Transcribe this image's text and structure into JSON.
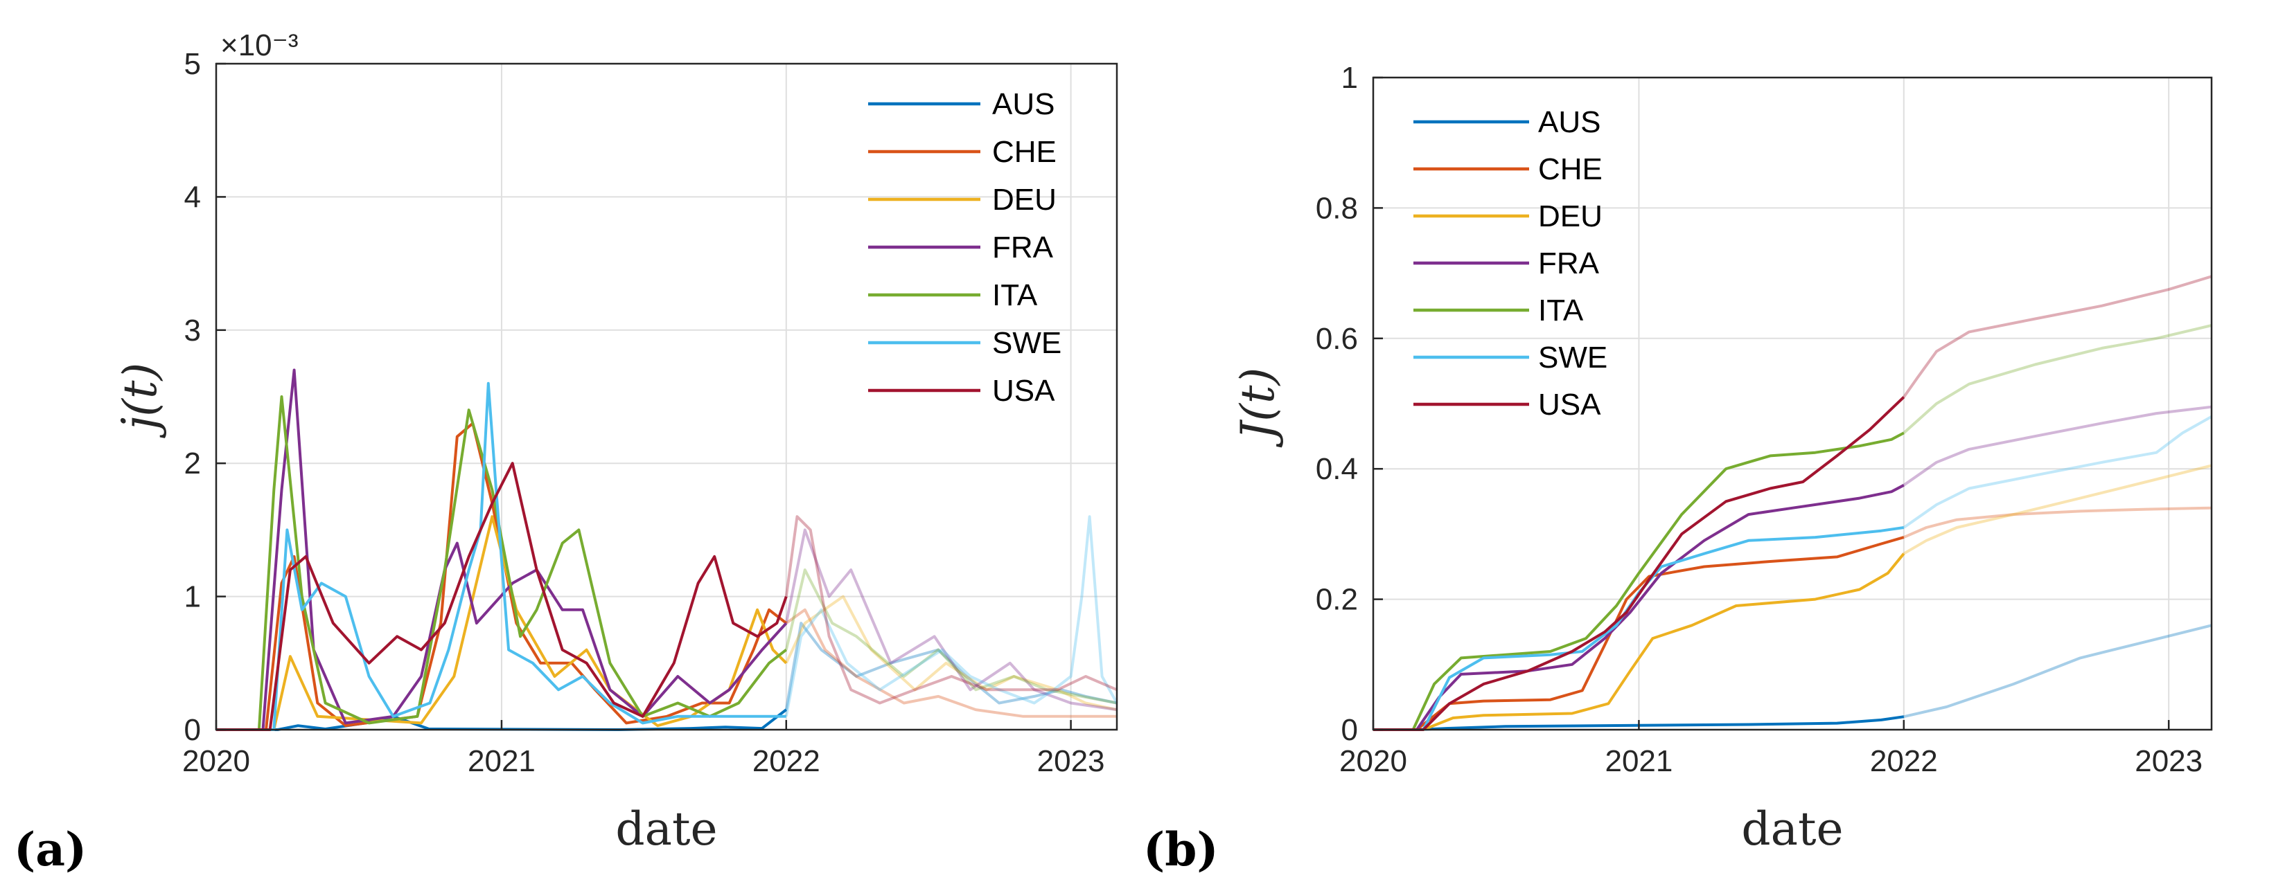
{
  "panel_labels": [
    "(a)",
    "(b)"
  ],
  "chart_data": [
    {
      "type": "line",
      "xlabel": "date",
      "ylabel": "j̇(t)",
      "x_ticks": [
        "2020",
        "2021",
        "2022",
        "2023"
      ],
      "y_ticks": [
        "0",
        "1",
        "2",
        "3",
        "4",
        "5"
      ],
      "y_multiplier": "×10⁻³",
      "xlim": [
        "2020-01-01",
        "2023-03-01"
      ],
      "ylim": [
        0,
        0.005
      ],
      "grid": true,
      "legend_position": "top-right",
      "faded_after": "2022-01-01",
      "series": [
        {
          "name": "AUS",
          "color": "#0072BD",
          "x": [
            "2020-01-01",
            "2020-03-20",
            "2020-04-15",
            "2020-05-20",
            "2020-07-10",
            "2020-08-15",
            "2020-09-30",
            "2021-06-01",
            "2021-09-01",
            "2021-10-15",
            "2021-12-01",
            "2022-01-01",
            "2022-01-20",
            "2022-02-15",
            "2022-04-01",
            "2022-05-15",
            "2022-07-15",
            "2022-08-20",
            "2022-10-01",
            "2022-11-15",
            "2022-12-20",
            "2023-01-20",
            "2023-03-01"
          ],
          "y": [
            0,
            0,
            3e-05,
            5e-06,
            5e-05,
            0.0001,
            5e-06,
            0,
            1e-05,
            2e-05,
            1e-05,
            0.00015,
            0.0008,
            0.0006,
            0.0004,
            0.0005,
            0.0006,
            0.0004,
            0.0002,
            0.00025,
            0.0003,
            0.00025,
            0.0002
          ]
        },
        {
          "name": "CHE",
          "color": "#D95319",
          "x": [
            "2020-01-01",
            "2020-03-05",
            "2020-03-25",
            "2020-04-10",
            "2020-05-10",
            "2020-06-15",
            "2020-09-15",
            "2020-10-15",
            "2020-11-05",
            "2020-11-25",
            "2020-12-20",
            "2021-01-20",
            "2021-02-20",
            "2021-04-01",
            "2021-05-01",
            "2021-06-10",
            "2021-08-01",
            "2021-09-15",
            "2021-10-20",
            "2021-11-20",
            "2021-12-10",
            "2022-01-01",
            "2022-01-25",
            "2022-02-20",
            "2022-04-01",
            "2022-06-01",
            "2022-07-15",
            "2022-09-01",
            "2022-11-01",
            "2023-01-01",
            "2023-03-01"
          ],
          "y": [
            0,
            0,
            0.0011,
            0.0013,
            0.0002,
            3e-05,
            0.0001,
            0.0008,
            0.0022,
            0.0023,
            0.0017,
            0.0008,
            0.0005,
            0.0005,
            0.0003,
            5e-05,
            0.0001,
            0.0002,
            0.0002,
            0.0006,
            0.0009,
            0.0008,
            0.0009,
            0.0006,
            0.0004,
            0.0002,
            0.00025,
            0.00015,
            0.0001,
            0.0001,
            0.0001
          ]
        },
        {
          "name": "DEU",
          "color": "#EDB120",
          "x": [
            "2020-01-01",
            "2020-03-15",
            "2020-04-05",
            "2020-05-10",
            "2020-09-20",
            "2020-11-01",
            "2020-12-20",
            "2021-01-20",
            "2021-03-10",
            "2021-04-20",
            "2021-05-20",
            "2021-07-20",
            "2021-09-01",
            "2021-10-20",
            "2021-11-25",
            "2021-12-15",
            "2022-01-01",
            "2022-01-25",
            "2022-03-15",
            "2022-04-20",
            "2022-06-15",
            "2022-07-25",
            "2022-09-15",
            "2022-10-20",
            "2022-12-15",
            "2023-01-20",
            "2023-03-01"
          ],
          "y": [
            0,
            0,
            0.00055,
            0.0001,
            5e-05,
            0.0004,
            0.0016,
            0.0009,
            0.0004,
            0.0006,
            0.0003,
            3e-05,
            0.0001,
            0.0003,
            0.0009,
            0.0006,
            0.0005,
            0.0008,
            0.001,
            0.0006,
            0.0003,
            0.0005,
            0.0003,
            0.0004,
            0.0003,
            0.0002,
            0.00015
          ]
        },
        {
          "name": "FRA",
          "color": "#7E2F8E",
          "x": [
            "2020-01-01",
            "2020-03-01",
            "2020-03-25",
            "2020-04-10",
            "2020-05-05",
            "2020-06-15",
            "2020-08-15",
            "2020-09-20",
            "2020-10-20",
            "2020-11-05",
            "2020-11-30",
            "2021-01-15",
            "2021-02-15",
            "2021-03-20",
            "2021-04-15",
            "2021-05-20",
            "2021-07-01",
            "2021-08-15",
            "2021-09-25",
            "2021-10-20",
            "2021-12-01",
            "2022-01-01",
            "2022-01-25",
            "2022-02-25",
            "2022-03-25",
            "2022-05-15",
            "2022-07-10",
            "2022-08-25",
            "2022-10-15",
            "2022-11-15",
            "2023-01-01",
            "2023-03-01"
          ],
          "y": [
            0,
            0,
            0.0018,
            0.0027,
            0.0006,
            5e-05,
            0.0001,
            0.0004,
            0.0012,
            0.0014,
            0.0008,
            0.0011,
            0.0012,
            0.0009,
            0.0009,
            0.0003,
            0.0001,
            0.0004,
            0.0002,
            0.0003,
            0.0006,
            0.0008,
            0.0015,
            0.001,
            0.0012,
            0.0005,
            0.0007,
            0.0003,
            0.0005,
            0.0003,
            0.0002,
            0.00015
          ]
        },
        {
          "name": "ITA",
          "color": "#77AC30",
          "x": [
            "2020-01-01",
            "2020-02-25",
            "2020-03-15",
            "2020-03-25",
            "2020-04-20",
            "2020-05-20",
            "2020-07-15",
            "2020-09-15",
            "2020-10-20",
            "2020-11-20",
            "2020-12-20",
            "2021-01-25",
            "2021-02-15",
            "2021-03-20",
            "2021-04-10",
            "2021-05-20",
            "2021-07-01",
            "2021-08-15",
            "2021-09-25",
            "2021-11-01",
            "2021-12-10",
            "2022-01-01",
            "2022-01-25",
            "2022-03-01",
            "2022-04-01",
            "2022-06-01",
            "2022-07-15",
            "2022-09-01",
            "2022-10-20",
            "2022-12-01",
            "2023-03-01"
          ],
          "y": [
            0,
            0,
            0.0018,
            0.0025,
            0.001,
            0.0002,
            5e-05,
            0.0001,
            0.0012,
            0.0024,
            0.0018,
            0.0007,
            0.0009,
            0.0014,
            0.0015,
            0.0005,
            0.0001,
            0.0002,
            0.0001,
            0.0002,
            0.0005,
            0.0006,
            0.0012,
            0.0008,
            0.0007,
            0.0004,
            0.0006,
            0.0003,
            0.0004,
            0.0003,
            0.0002
          ]
        },
        {
          "name": "SWE",
          "color": "#4DBEEE",
          "x": [
            "2020-01-01",
            "2020-03-15",
            "2020-04-01",
            "2020-04-20",
            "2020-05-15",
            "2020-06-15",
            "2020-07-15",
            "2020-08-15",
            "2020-10-01",
            "2020-10-25",
            "2020-11-20",
            "2020-12-05",
            "2020-12-15",
            "2020-12-25",
            "2021-01-10",
            "2021-02-10",
            "2021-03-15",
            "2021-04-15",
            "2021-05-20",
            "2021-07-01",
            "2021-08-15",
            "2021-10-01",
            "2021-11-15",
            "2021-12-20",
            "2022-01-01",
            "2022-01-20",
            "2022-02-15",
            "2022-03-20",
            "2022-05-01",
            "2022-07-20",
            "2022-08-25",
            "2022-10-01",
            "2022-11-15",
            "2022-12-10",
            "2023-01-01",
            "2023-01-15",
            "2023-01-25",
            "2023-02-10",
            "2023-03-01"
          ],
          "y": [
            0,
            0,
            0.0015,
            0.0009,
            0.0011,
            0.001,
            0.0004,
            0.0001,
            0.0002,
            0.0006,
            0.0012,
            0.0015,
            0.0026,
            0.0018,
            0.0006,
            0.0005,
            0.0003,
            0.0004,
            0.0002,
            5e-05,
            0.0001,
            0.0001,
            0.0001,
            0.0001,
            0.0001,
            0.0007,
            0.0009,
            0.0005,
            0.0003,
            0.0006,
            0.0004,
            0.0003,
            0.0002,
            0.0003,
            0.0004,
            0.001,
            0.0016,
            0.0004,
            0.0002
          ]
        },
        {
          "name": "USA",
          "color": "#A2142F",
          "x": [
            "2020-01-01",
            "2020-03-10",
            "2020-04-05",
            "2020-04-25",
            "2020-05-30",
            "2020-07-15",
            "2020-08-20",
            "2020-09-20",
            "2020-10-20",
            "2020-11-20",
            "2020-12-20",
            "2021-01-15",
            "2021-02-15",
            "2021-03-20",
            "2021-04-20",
            "2021-05-25",
            "2021-07-01",
            "2021-08-10",
            "2021-09-10",
            "2021-10-01",
            "2021-10-25",
            "2021-11-25",
            "2021-12-20",
            "2022-01-01",
            "2022-01-15",
            "2022-02-01",
            "2022-02-25",
            "2022-03-25",
            "2022-05-01",
            "2022-06-15",
            "2022-08-01",
            "2022-09-15",
            "2022-11-01",
            "2022-12-15",
            "2023-01-20",
            "2023-03-01"
          ],
          "y": [
            0,
            0,
            0.0012,
            0.0013,
            0.0008,
            0.0005,
            0.0007,
            0.0006,
            0.0008,
            0.0013,
            0.0017,
            0.002,
            0.0012,
            0.0006,
            0.0005,
            0.0002,
            0.0001,
            0.0005,
            0.0011,
            0.0013,
            0.0008,
            0.0007,
            0.0008,
            0.001,
            0.0016,
            0.0015,
            0.0007,
            0.0003,
            0.0002,
            0.0003,
            0.0004,
            0.0003,
            0.0003,
            0.0003,
            0.0004,
            0.0003
          ]
        }
      ]
    },
    {
      "type": "line",
      "xlabel": "date",
      "ylabel": "J(t)",
      "x_ticks": [
        "2020",
        "2021",
        "2022",
        "2023"
      ],
      "y_ticks": [
        "0",
        "0.2",
        "0.4",
        "0.6",
        "0.8",
        "1"
      ],
      "xlim": [
        "2020-01-01",
        "2023-03-01"
      ],
      "ylim": [
        0,
        1
      ],
      "grid": true,
      "legend_position": "top-left",
      "faded_after": "2022-01-01",
      "series": [
        {
          "name": "AUS",
          "color": "#0072BD",
          "x": [
            "2020-01-01",
            "2020-03-01",
            "2020-04-10",
            "2020-07-01",
            "2021-06-01",
            "2021-10-01",
            "2021-12-01",
            "2022-01-01",
            "2022-03-01",
            "2022-06-01",
            "2022-09-01",
            "2022-12-01",
            "2023-03-01"
          ],
          "y": [
            0,
            0,
            0.002,
            0.005,
            0.008,
            0.01,
            0.015,
            0.02,
            0.035,
            0.07,
            0.11,
            0.135,
            0.16
          ]
        },
        {
          "name": "CHE",
          "color": "#D95319",
          "x": [
            "2020-01-01",
            "2020-03-01",
            "2020-04-15",
            "2020-06-01",
            "2020-09-01",
            "2020-10-15",
            "2020-11-15",
            "2020-12-15",
            "2021-01-15",
            "2021-04-01",
            "2021-07-01",
            "2021-10-01",
            "2021-12-01",
            "2022-01-01",
            "2022-02-01",
            "2022-03-15",
            "2022-06-01",
            "2022-09-01",
            "2022-12-01",
            "2023-03-01"
          ],
          "y": [
            0,
            0,
            0.04,
            0.044,
            0.046,
            0.06,
            0.13,
            0.2,
            0.235,
            0.25,
            0.258,
            0.265,
            0.285,
            0.295,
            0.31,
            0.322,
            0.33,
            0.335,
            0.338,
            0.34
          ]
        },
        {
          "name": "DEU",
          "color": "#EDB120",
          "x": [
            "2020-01-01",
            "2020-03-10",
            "2020-04-20",
            "2020-06-01",
            "2020-10-01",
            "2020-11-20",
            "2020-12-20",
            "2021-01-20",
            "2021-03-15",
            "2021-05-15",
            "2021-09-01",
            "2021-11-01",
            "2021-12-10",
            "2022-01-01",
            "2022-02-01",
            "2022-03-15",
            "2022-06-01",
            "2022-09-01",
            "2022-12-01",
            "2023-03-01"
          ],
          "y": [
            0,
            0,
            0.018,
            0.022,
            0.025,
            0.04,
            0.09,
            0.14,
            0.16,
            0.19,
            0.2,
            0.215,
            0.24,
            0.27,
            0.29,
            0.31,
            0.33,
            0.355,
            0.38,
            0.405
          ]
        },
        {
          "name": "FRA",
          "color": "#7E2F8E",
          "x": [
            "2020-01-01",
            "2020-03-01",
            "2020-04-01",
            "2020-05-01",
            "2020-08-01",
            "2020-10-01",
            "2020-11-15",
            "2020-12-20",
            "2021-02-01",
            "2021-04-01",
            "2021-06-01",
            "2021-08-01",
            "2021-11-01",
            "2021-12-15",
            "2022-01-01",
            "2022-02-15",
            "2022-04-01",
            "2022-07-01",
            "2022-10-01",
            "2022-12-15",
            "2023-03-01"
          ],
          "y": [
            0,
            0,
            0.05,
            0.085,
            0.09,
            0.1,
            0.14,
            0.18,
            0.24,
            0.29,
            0.33,
            0.34,
            0.355,
            0.365,
            0.375,
            0.41,
            0.43,
            0.45,
            0.47,
            0.485,
            0.495
          ]
        },
        {
          "name": "ITA",
          "color": "#77AC30",
          "x": [
            "2020-01-01",
            "2020-02-25",
            "2020-03-25",
            "2020-05-01",
            "2020-09-01",
            "2020-10-20",
            "2020-12-01",
            "2021-01-01",
            "2021-03-01",
            "2021-05-01",
            "2021-07-01",
            "2021-09-01",
            "2021-11-01",
            "2021-12-15",
            "2022-01-01",
            "2022-02-15",
            "2022-04-01",
            "2022-07-01",
            "2022-10-01",
            "2022-12-15",
            "2023-03-01"
          ],
          "y": [
            0,
            0,
            0.07,
            0.11,
            0.12,
            0.14,
            0.19,
            0.24,
            0.33,
            0.4,
            0.42,
            0.425,
            0.435,
            0.445,
            0.455,
            0.5,
            0.53,
            0.56,
            0.585,
            0.6,
            0.62
          ]
        },
        {
          "name": "SWE",
          "color": "#4DBEEE",
          "x": [
            "2020-01-01",
            "2020-03-10",
            "2020-04-15",
            "2020-06-01",
            "2020-09-01",
            "2020-10-15",
            "2020-12-01",
            "2021-01-01",
            "2021-02-01",
            "2021-04-01",
            "2021-06-01",
            "2021-09-01",
            "2021-12-01",
            "2022-01-01",
            "2022-02-15",
            "2022-04-01",
            "2022-07-01",
            "2022-10-01",
            "2022-12-15",
            "2023-01-20",
            "2023-03-01"
          ],
          "y": [
            0,
            0,
            0.08,
            0.11,
            0.115,
            0.12,
            0.16,
            0.21,
            0.25,
            0.27,
            0.29,
            0.295,
            0.305,
            0.31,
            0.345,
            0.37,
            0.39,
            0.41,
            0.425,
            0.455,
            0.48
          ]
        },
        {
          "name": "USA",
          "color": "#A2142F",
          "x": [
            "2020-01-01",
            "2020-03-10",
            "2020-04-15",
            "2020-06-01",
            "2020-08-01",
            "2020-10-01",
            "2020-11-15",
            "2020-12-15",
            "2021-01-15",
            "2021-03-01",
            "2021-05-01",
            "2021-07-01",
            "2021-08-15",
            "2021-10-01",
            "2021-11-15",
            "2022-01-01",
            "2022-01-20",
            "2022-02-15",
            "2022-04-01",
            "2022-07-01",
            "2022-10-01",
            "2023-01-01",
            "2023-03-01"
          ],
          "y": [
            0,
            0,
            0.04,
            0.07,
            0.09,
            0.12,
            0.15,
            0.18,
            0.23,
            0.3,
            0.35,
            0.37,
            0.38,
            0.42,
            0.46,
            0.51,
            0.54,
            0.58,
            0.61,
            0.63,
            0.65,
            0.675,
            0.695
          ]
        }
      ]
    }
  ]
}
